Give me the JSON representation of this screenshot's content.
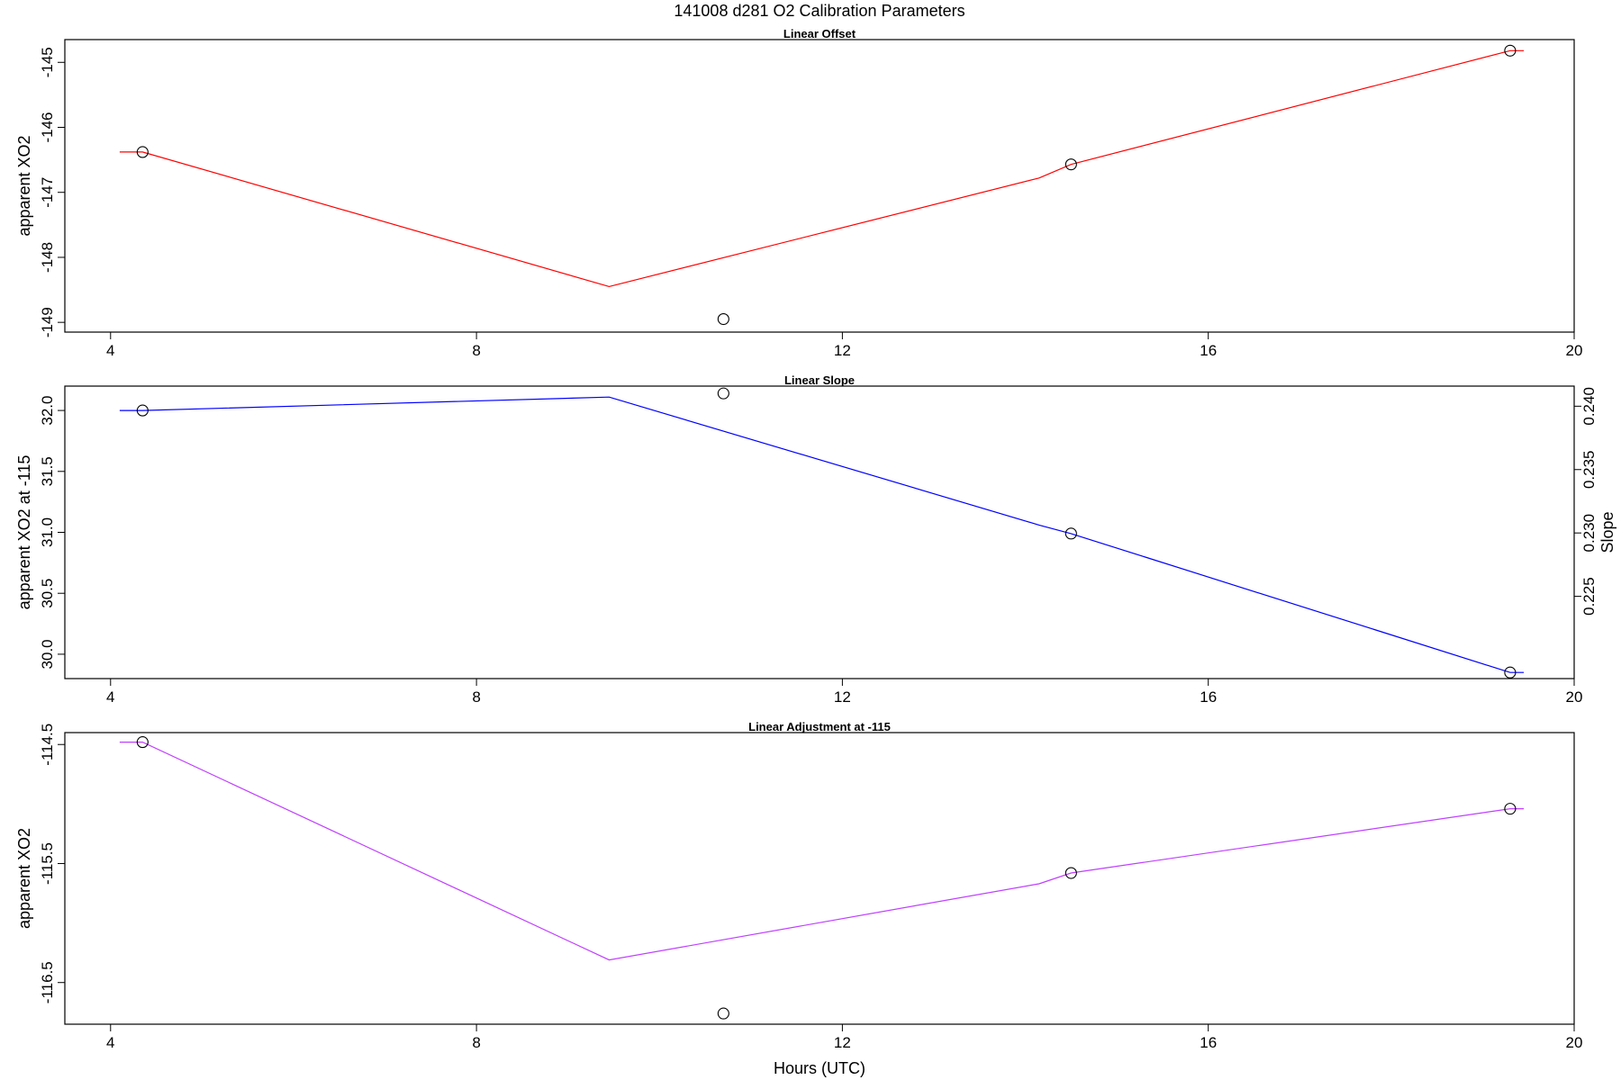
{
  "figure": {
    "title": "141008   d281   O2 Calibration Parameters",
    "xlabel": "Hours (UTC)"
  },
  "chart_data": [
    {
      "type": "line",
      "title": "Linear Offset",
      "xlabel": "",
      "ylabel": "apparent XO2",
      "xlim": [
        3.5,
        20.0
      ],
      "ylim": [
        -149.15,
        -144.65
      ],
      "x_ticks": [
        4,
        8,
        12,
        16,
        20
      ],
      "y_ticks": [
        -149,
        -148,
        -147,
        -146,
        -145
      ],
      "y_tick_labels": [
        "-149",
        "-148",
        "-147",
        "-146",
        "-145"
      ],
      "series": [
        {
          "role": "fit",
          "color": "#ff0000",
          "x": [
            4.1,
            4.35,
            9.45,
            14.15,
            14.5,
            19.3,
            19.45
          ],
          "y": [
            -146.38,
            -146.38,
            -148.45,
            -146.78,
            -146.57,
            -144.82,
            -144.82
          ]
        },
        {
          "role": "points",
          "marker": "open-circle",
          "color": "#000000",
          "x": [
            4.35,
            10.7,
            14.5,
            19.3
          ],
          "y": [
            -146.38,
            -148.95,
            -146.57,
            -144.82
          ]
        }
      ]
    },
    {
      "type": "line",
      "title": "Linear Slope",
      "xlabel": "",
      "ylabel": "apparent XO2 at -115",
      "ylabel_right": "Slope",
      "xlim": [
        3.5,
        20.0
      ],
      "ylim": [
        29.8,
        32.2
      ],
      "x_ticks": [
        4,
        8,
        12,
        16,
        20
      ],
      "y_ticks": [
        30.0,
        30.5,
        31.0,
        31.5,
        32.0
      ],
      "y_tick_labels": [
        "30.0",
        "30.5",
        "31.0",
        "31.5",
        "32.0"
      ],
      "y2_ticks": [
        0.225,
        0.23,
        0.235,
        0.24
      ],
      "y2_tick_labels": [
        "0.225",
        "0.230",
        "0.235",
        "0.240"
      ],
      "y2_map": {
        "y_at_0.24": 32.035,
        "y_per_0.005": 0.52
      },
      "series": [
        {
          "role": "fit",
          "color": "#0000ff",
          "x": [
            4.1,
            4.35,
            9.45,
            14.15,
            14.5,
            19.3,
            19.45
          ],
          "y": [
            32.0,
            32.0,
            32.11,
            31.06,
            30.99,
            29.85,
            29.85
          ]
        },
        {
          "role": "points",
          "marker": "open-circle",
          "color": "#000000",
          "x": [
            4.35,
            10.7,
            14.5,
            19.3
          ],
          "y": [
            32.0,
            32.14,
            30.99,
            29.85
          ]
        }
      ]
    },
    {
      "type": "line",
      "title": "Linear Adjustment at -115",
      "xlabel": "Hours (UTC)",
      "ylabel": "apparent XO2",
      "xlim": [
        3.5,
        20.0
      ],
      "ylim": [
        -116.85,
        -114.4
      ],
      "x_ticks": [
        4,
        8,
        12,
        16,
        20
      ],
      "y_ticks": [
        -116.5,
        -115.5,
        -114.5
      ],
      "y_tick_labels": [
        "-116.5",
        "-115.5",
        "-114.5"
      ],
      "series": [
        {
          "role": "fit",
          "color": "#bf3fff",
          "x": [
            4.1,
            4.35,
            9.45,
            14.15,
            14.5,
            19.3,
            19.45
          ],
          "y": [
            -114.48,
            -114.48,
            -116.31,
            -115.67,
            -115.58,
            -115.04,
            -115.04
          ]
        },
        {
          "role": "points",
          "marker": "open-circle",
          "color": "#000000",
          "x": [
            4.35,
            10.7,
            14.5,
            19.3
          ],
          "y": [
            -114.48,
            -116.76,
            -115.58,
            -115.04
          ]
        }
      ]
    }
  ]
}
